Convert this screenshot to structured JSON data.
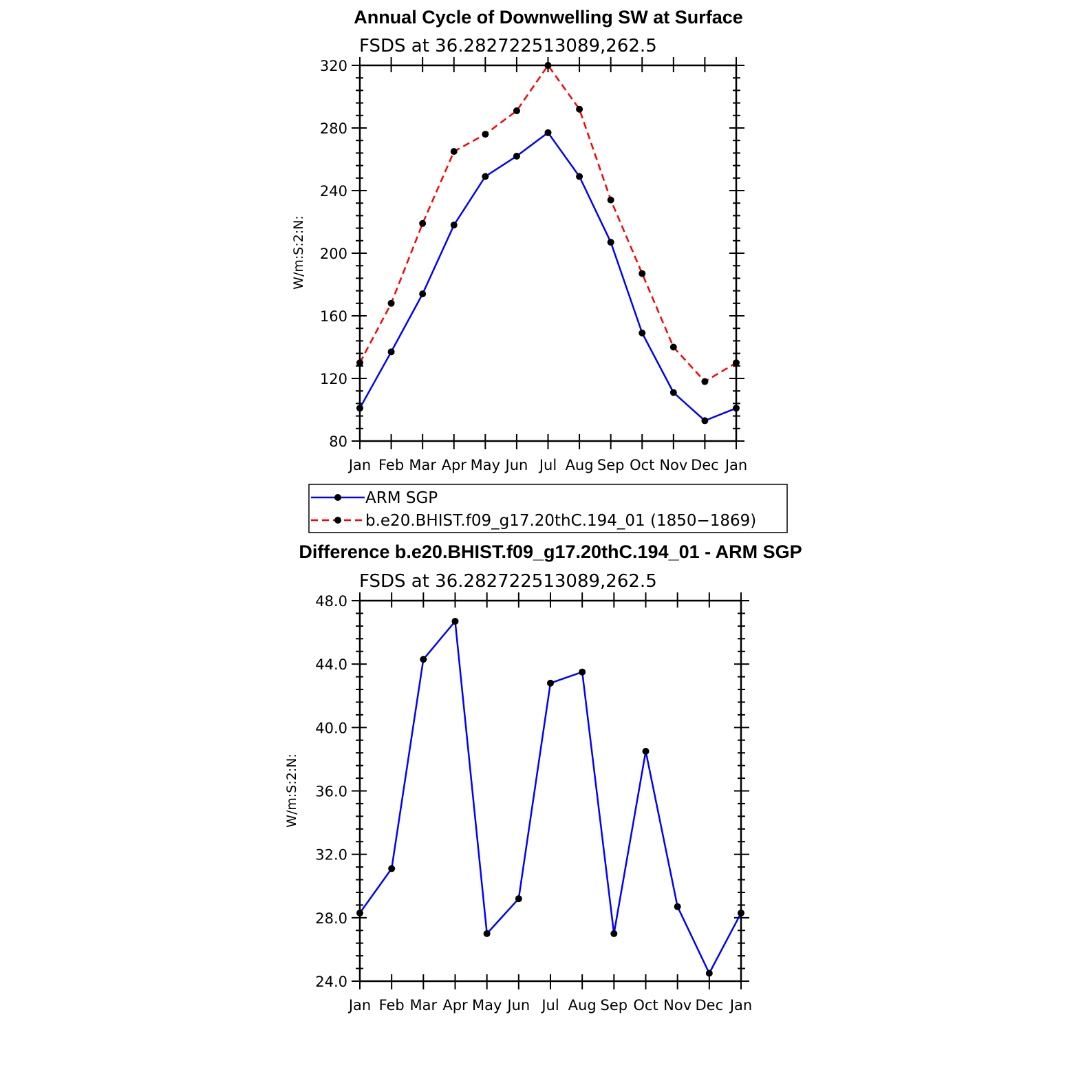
{
  "chart_data": [
    {
      "type": "line",
      "title": "Annual Cycle of Downwelling SW at Surface",
      "subtitle": "FSDS at 36.282722513089,262.5",
      "ylabel": "W/m:S:2:N:",
      "ylim": [
        80,
        320
      ],
      "yticks": [
        "80",
        "120",
        "160",
        "200",
        "240",
        "280",
        "320"
      ],
      "categories": [
        "Jan",
        "Feb",
        "Mar",
        "Apr",
        "May",
        "Jun",
        "Jul",
        "Aug",
        "Sep",
        "Oct",
        "Nov",
        "Dec",
        "Jan"
      ],
      "series": [
        {
          "name": "ARM SGP",
          "color": "#0000ff",
          "dash": "solid",
          "values": [
            101,
            137,
            174,
            218,
            249,
            262,
            277,
            249,
            207,
            149,
            111,
            93,
            101
          ]
        },
        {
          "name": "b.e20.BHIST.f09_g17.20thC.194_01 (1850−1869)",
          "color": "#ff0000",
          "dash": "dashed",
          "values": [
            130,
            168,
            219,
            265,
            276,
            291,
            320,
            292,
            234,
            187,
            140,
            118,
            130
          ]
        }
      ],
      "legend": "below"
    },
    {
      "type": "line",
      "title": "Difference b.e20.BHIST.f09_g17.20thC.194_01 - ARM SGP",
      "subtitle": "FSDS at 36.282722513089,262.5",
      "ylabel": "W/m:S:2:N:",
      "ylim": [
        24,
        48
      ],
      "yticks": [
        "24.0",
        "28.0",
        "32.0",
        "36.0",
        "40.0",
        "44.0",
        "48.0"
      ],
      "categories": [
        "Jan",
        "Feb",
        "Mar",
        "Apr",
        "May",
        "Jun",
        "Jul",
        "Aug",
        "Sep",
        "Oct",
        "Nov",
        "Dec",
        "Jan"
      ],
      "series": [
        {
          "color": "#0000ff",
          "dash": "solid",
          "values": [
            28.3,
            31.1,
            44.3,
            46.7,
            27.0,
            29.2,
            42.8,
            43.5,
            27.0,
            38.5,
            28.7,
            24.5,
            28.3
          ]
        }
      ]
    }
  ]
}
